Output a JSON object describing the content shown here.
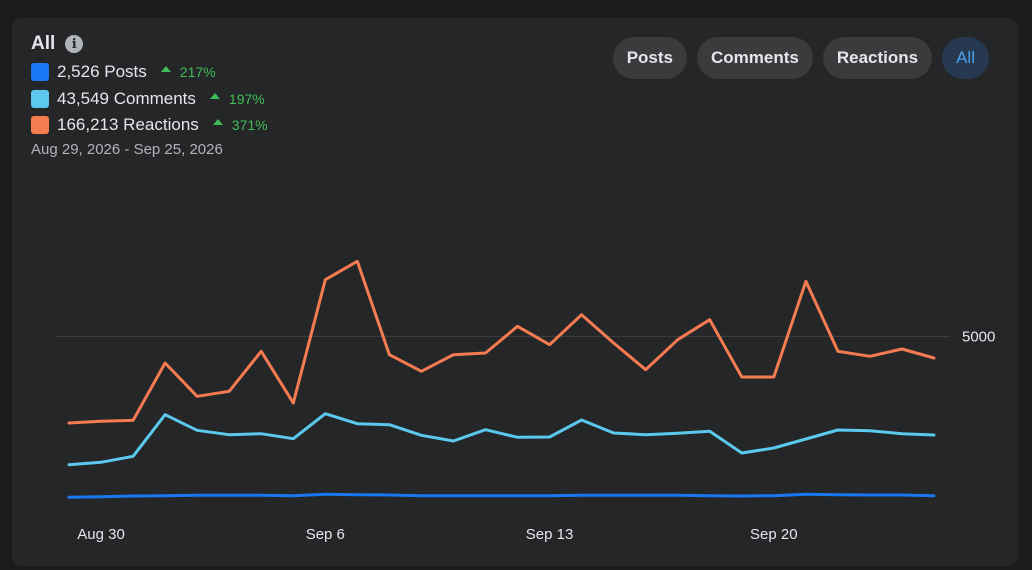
{
  "header": {
    "title": "All",
    "info_icon": "info-circle-icon"
  },
  "legend": [
    {
      "label": "2,526 Posts",
      "delta": "217%",
      "color": "#1877f2"
    },
    {
      "label": "43,549 Comments",
      "delta": "197%",
      "color": "#5bc8ed"
    },
    {
      "label": "166,213 Reactions",
      "delta": "371%",
      "color": "#f57b51"
    }
  ],
  "date_range": "Aug 29, 2026 - Sep 25, 2026",
  "buttons": {
    "posts": "Posts",
    "comments": "Comments",
    "reactions": "Reactions",
    "all": "All",
    "active": "All"
  },
  "chart_data": {
    "type": "line",
    "x": [
      "Aug 29",
      "Aug 30",
      "Aug 31",
      "Sep 1",
      "Sep 2",
      "Sep 3",
      "Sep 4",
      "Sep 5",
      "Sep 6",
      "Sep 7",
      "Sep 8",
      "Sep 9",
      "Sep 10",
      "Sep 11",
      "Sep 12",
      "Sep 13",
      "Sep 14",
      "Sep 15",
      "Sep 16",
      "Sep 17",
      "Sep 18",
      "Sep 19",
      "Sep 20",
      "Sep 21",
      "Sep 22",
      "Sep 23",
      "Sep 24",
      "Sep 25"
    ],
    "x_tick_labels": [
      "Aug 30",
      "Sep 6",
      "Sep 13",
      "Sep 20"
    ],
    "y_tick_labels": [
      "5000"
    ],
    "y_gridline": 5000,
    "ylim": [
      0,
      9600
    ],
    "grid": "single gridline at 5000",
    "series": [
      {
        "values": [
          2400,
          2450,
          2480,
          4200,
          3200,
          3350,
          4550,
          3000,
          6700,
          7250,
          4450,
          3950,
          4450,
          4500,
          5300,
          4750,
          5650,
          4800,
          4000,
          4900,
          5500,
          3780,
          3780,
          6650,
          4550,
          4400,
          4620,
          4350
        ],
        "color": "#f57b51"
      },
      {
        "values": [
          1150,
          1220,
          1400,
          2650,
          2180,
          2050,
          2080,
          1930,
          2680,
          2380,
          2350,
          2030,
          1860,
          2200,
          1970,
          1980,
          2490,
          2100,
          2050,
          2090,
          2150,
          1500,
          1650,
          1920,
          2190,
          2170,
          2080,
          2040
        ],
        "color": "#5bc8ed"
      },
      {
        "values": [
          170,
          190,
          210,
          220,
          230,
          230,
          230,
          220,
          260,
          250,
          240,
          220,
          220,
          220,
          220,
          220,
          230,
          230,
          230,
          230,
          220,
          210,
          220,
          260,
          250,
          240,
          240,
          220
        ],
        "color": "#1877f2"
      }
    ]
  }
}
